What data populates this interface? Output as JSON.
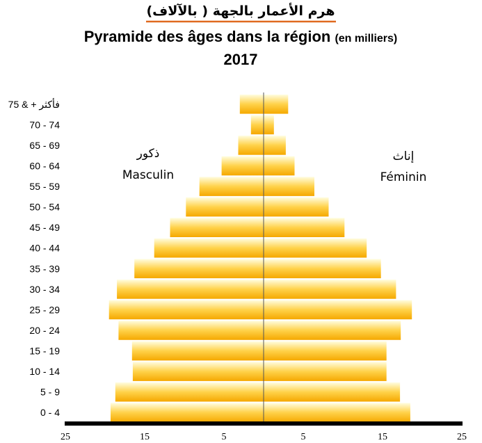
{
  "title_ar": "هرم الأعمار بالجهة ( بالآلاف)",
  "title_fr": "Pyramide des âges  dans la région",
  "title_unit": "(en milliers)",
  "year": "2017",
  "colors": {
    "underline": "#e06a20",
    "bar_dark": "#f5a800",
    "bar_light": "#fffde0",
    "axis": "#000000",
    "center": "#555555"
  },
  "chart_data": {
    "type": "bar",
    "orientation": "horizontal",
    "categories": [
      "0 - 4",
      "5 - 9",
      "10 - 14",
      "15 - 19",
      "20 - 24",
      "25 - 29",
      "30 - 34",
      "35 - 39",
      "40 - 44",
      "45 - 49",
      "50 - 54",
      "55 - 59",
      "60 - 64",
      "65 - 69",
      "70 - 74",
      "75 & + فأكثر"
    ],
    "series": [
      {
        "name": "Masculin",
        "name_ar": "ذكور",
        "values": [
          19.3,
          18.7,
          16.5,
          16.6,
          18.3,
          19.5,
          18.5,
          16.3,
          13.8,
          11.8,
          9.8,
          8.1,
          5.3,
          3.2,
          1.6,
          3.0
        ]
      },
      {
        "name": "Féminin",
        "name_ar": "إناث",
        "values": [
          18.5,
          17.2,
          15.5,
          15.5,
          17.3,
          18.7,
          16.7,
          14.8,
          13.0,
          10.2,
          8.2,
          6.4,
          3.9,
          2.8,
          1.3,
          3.1
        ]
      }
    ],
    "x_ticks": [
      "25",
      "15",
      "5",
      "5",
      "15",
      "25"
    ],
    "xlim": [
      -25,
      25
    ]
  }
}
